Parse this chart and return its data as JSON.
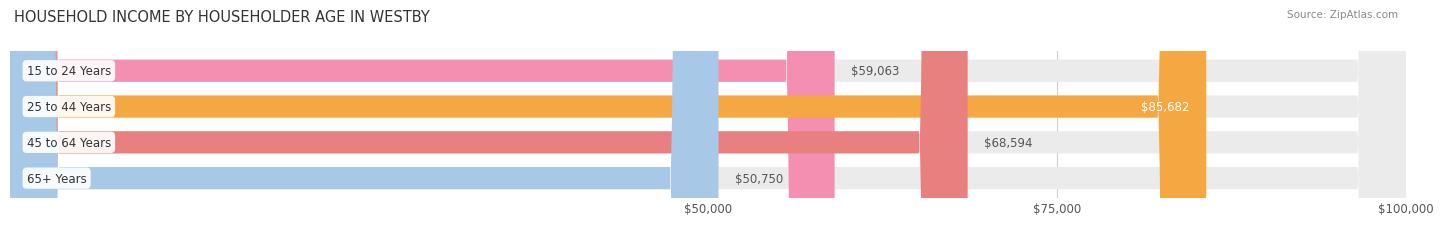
{
  "title": "HOUSEHOLD INCOME BY HOUSEHOLDER AGE IN WESTBY",
  "source": "Source: ZipAtlas.com",
  "categories": [
    "15 to 24 Years",
    "25 to 44 Years",
    "45 to 64 Years",
    "65+ Years"
  ],
  "values": [
    59063,
    85682,
    68594,
    50750
  ],
  "bar_colors": [
    "#f48fb1",
    "#f5a742",
    "#e88080",
    "#a8c8e8"
  ],
  "track_color": "#ebebeb",
  "xlim": [
    0,
    100000
  ],
  "xticks": [
    50000,
    75000,
    100000
  ],
  "xtick_labels": [
    "$50,000",
    "$75,000",
    "$100,000"
  ],
  "label_fontsize": 8.5,
  "title_fontsize": 10.5,
  "value_label_inside_color": "#ffffff",
  "value_label_outside_color": "#555555",
  "bar_height": 0.62,
  "background_color": "#ffffff",
  "cat_label_color": "#333333",
  "grid_color": "#d0d0d0",
  "source_color": "#888888"
}
